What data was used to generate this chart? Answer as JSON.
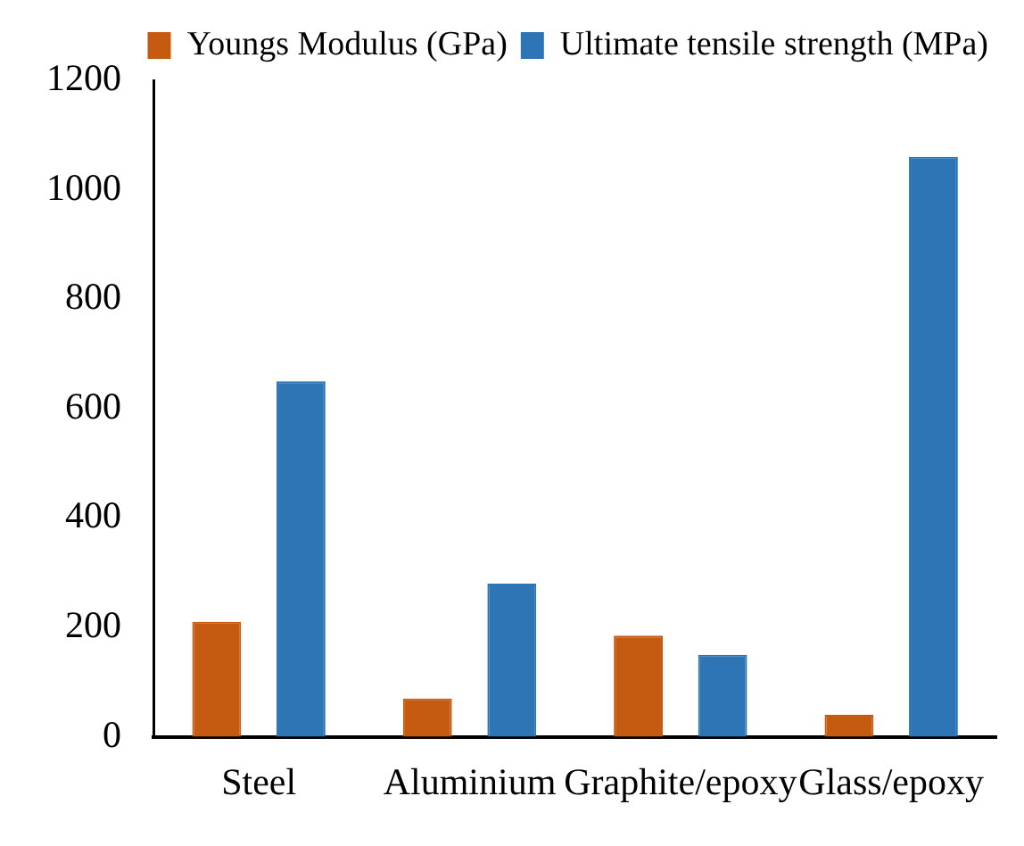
{
  "chart_data": {
    "type": "bar",
    "categories": [
      "Steel",
      "Aluminium",
      "Graphite/epoxy",
      "Glass/epoxy"
    ],
    "series": [
      {
        "name": "Youngs Modulus (GPa)",
        "color": "#c55a11",
        "values": [
          210,
          70,
          185,
          40
        ]
      },
      {
        "name": "Ultimate tensile strength (MPa)",
        "color": "#2e75b6",
        "values": [
          650,
          280,
          150,
          1060
        ]
      }
    ],
    "ylim": [
      0,
      1200
    ],
    "yticks": [
      0,
      200,
      400,
      600,
      800,
      1000,
      1200
    ],
    "grid": false,
    "legend": "top right"
  }
}
